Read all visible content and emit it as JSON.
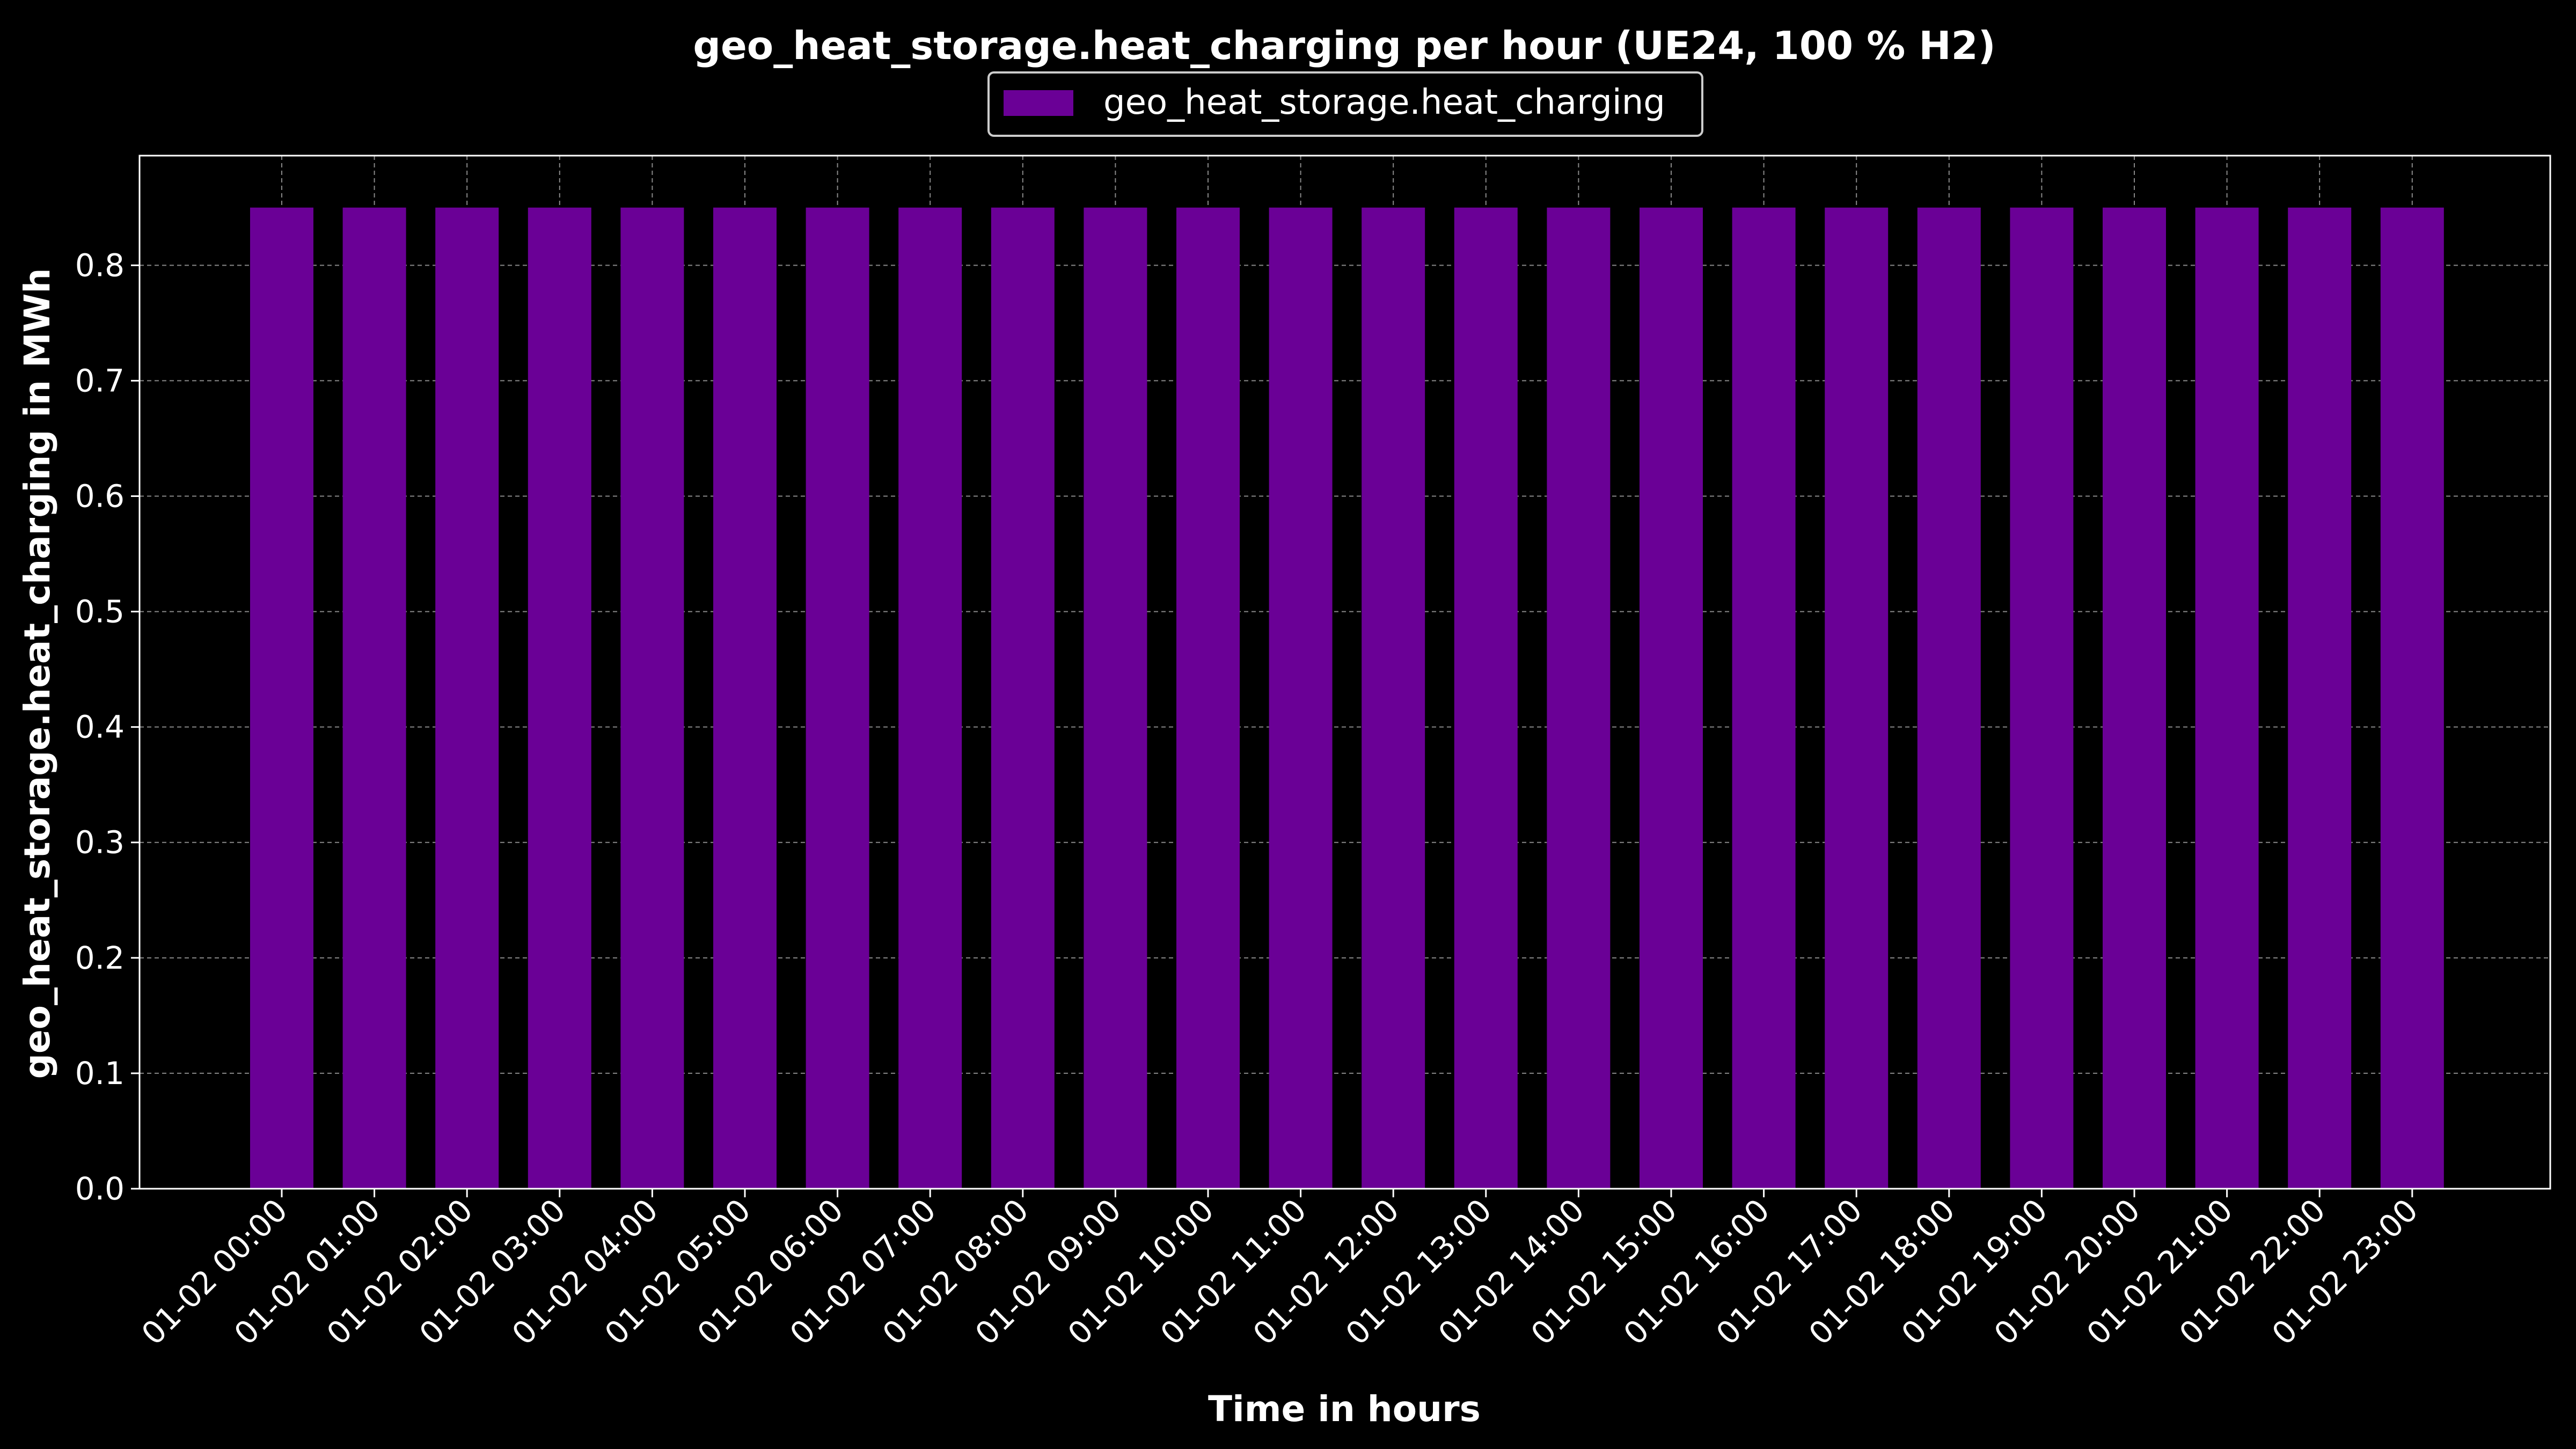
{
  "chart_data": {
    "type": "bar",
    "title": "geo_heat_storage.heat_charging per hour (UE24, 100 % H2)",
    "xlabel": "Time in hours",
    "ylabel": "geo_heat_storage.heat_charging in MWh",
    "ylim": [
      0,
      0.895
    ],
    "yticks": [
      "0.0",
      "0.1",
      "0.2",
      "0.3",
      "0.4",
      "0.5",
      "0.6",
      "0.7",
      "0.8"
    ],
    "grid": true,
    "legend_position": "top-center",
    "categories": [
      "01-02 00:00",
      "01-02 01:00",
      "01-02 02:00",
      "01-02 03:00",
      "01-02 04:00",
      "01-02 05:00",
      "01-02 06:00",
      "01-02 07:00",
      "01-02 08:00",
      "01-02 09:00",
      "01-02 10:00",
      "01-02 11:00",
      "01-02 12:00",
      "01-02 13:00",
      "01-02 14:00",
      "01-02 15:00",
      "01-02 16:00",
      "01-02 17:00",
      "01-02 18:00",
      "01-02 19:00",
      "01-02 20:00",
      "01-02 21:00",
      "01-02 22:00",
      "01-02 23:00"
    ],
    "series": [
      {
        "name": "geo_heat_storage.heat_charging",
        "color": "#6a0096",
        "values": [
          0.85,
          0.85,
          0.85,
          0.85,
          0.85,
          0.85,
          0.85,
          0.85,
          0.85,
          0.85,
          0.85,
          0.85,
          0.85,
          0.85,
          0.85,
          0.85,
          0.85,
          0.85,
          0.85,
          0.85,
          0.85,
          0.85,
          0.85,
          0.85
        ]
      }
    ],
    "colors": {
      "background": "#000000",
      "axes": "#ffffff",
      "grid": "#888888"
    }
  }
}
